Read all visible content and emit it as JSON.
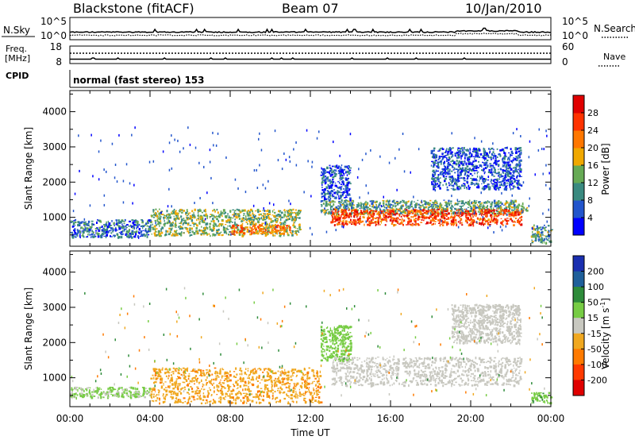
{
  "header": {
    "station": "Blackstone (fitACF)",
    "beam": "Beam 07",
    "date": "10/Jan/2010"
  },
  "noise_panel": {
    "left_label": "N.Sky",
    "left_ticks": [
      "10^5",
      "10^0"
    ],
    "right_label": "N.Search",
    "right_ticks": [
      "10^5",
      "10^0"
    ]
  },
  "freq_panel": {
    "left_label_1": "Freq.",
    "left_label_2": "[MHz]",
    "left_ticks": [
      "18",
      "8"
    ],
    "right_label": "Nave",
    "right_ticks": [
      "60",
      "0"
    ]
  },
  "cpid_panel": {
    "label": "CPID",
    "text": "normal (fast stereo) 153"
  },
  "x_axis": {
    "title": "Time UT",
    "ticks": [
      "00:00",
      "04:00",
      "08:00",
      "12:00",
      "16:00",
      "20:00",
      "00:00"
    ]
  },
  "power_panel": {
    "ylabel": "Slant Range [km]",
    "yticks": [
      "1000",
      "2000",
      "3000",
      "4000"
    ],
    "colorbar_label": "Power [dB]",
    "colorbar_ticks": [
      "4",
      "8",
      "12",
      "16",
      "20",
      "24",
      "28"
    ],
    "colors": [
      "#0000ff",
      "#2255cc",
      "#3a8a80",
      "#66aa55",
      "#f0a800",
      "#ff7700",
      "#ff3300",
      "#e00000"
    ]
  },
  "velocity_panel": {
    "ylabel": "Slant Range [km]",
    "yticks": [
      "1000",
      "2000",
      "3000",
      "4000"
    ],
    "colorbar_label": "Velocity [m s",
    "colorbar_label_sup": "-1",
    "colorbar_label_end": "]",
    "colorbar_ticks": [
      "200",
      "100",
      "50",
      "15",
      "-15",
      "-50",
      "-100",
      "-200"
    ],
    "colors": [
      "#1a2fb0",
      "#1f5f9a",
      "#2e8b3a",
      "#77cc44",
      "#c8c8c0",
      "#f0a820",
      "#ff7a00",
      "#ff3a00",
      "#e00000"
    ]
  },
  "chart_data": [
    {
      "type": "heatmap",
      "title": "Power",
      "x_range_hours": [
        0,
        24
      ],
      "ylim_km": [
        180,
        4600
      ],
      "value_label": "Power [dB]",
      "regions": [
        {
          "x": [
            0,
            4
          ],
          "y": [
            450,
            950
          ],
          "value": 8
        },
        {
          "x": [
            4,
            11.5
          ],
          "y": [
            500,
            1250
          ],
          "value": 14
        },
        {
          "x": [
            8,
            11
          ],
          "y": [
            550,
            800
          ],
          "value": 22
        },
        {
          "x": [
            12.5,
            22.8
          ],
          "y": [
            1100,
            1500
          ],
          "value": 12
        },
        {
          "x": [
            13,
            22.5
          ],
          "y": [
            800,
            1250
          ],
          "value": 25
        },
        {
          "x": [
            12.5,
            14
          ],
          "y": [
            1500,
            2500
          ],
          "value": 6
        },
        {
          "x": [
            18,
            22.5
          ],
          "y": [
            1800,
            3000
          ],
          "value": 6
        },
        {
          "x": [
            23,
            24
          ],
          "y": [
            300,
            800
          ],
          "value": 12
        }
      ]
    },
    {
      "type": "heatmap",
      "title": "Velocity",
      "x_range_hours": [
        0,
        24
      ],
      "ylim_km": [
        180,
        4600
      ],
      "value_label": "Velocity [m s^-1]",
      "regions": [
        {
          "x": [
            0,
            4
          ],
          "y": [
            450,
            750
          ],
          "value": 20
        },
        {
          "x": [
            4,
            12.5
          ],
          "y": [
            300,
            1300
          ],
          "value": -40
        },
        {
          "x": [
            12.5,
            14
          ],
          "y": [
            1500,
            2500
          ],
          "value": 30
        },
        {
          "x": [
            13,
            22.5
          ],
          "y": [
            800,
            1600
          ],
          "value": 0
        },
        {
          "x": [
            19,
            22.5
          ],
          "y": [
            2000,
            3100
          ],
          "value": 0
        },
        {
          "x": [
            23,
            24
          ],
          "y": [
            300,
            600
          ],
          "value": 40
        }
      ]
    }
  ]
}
